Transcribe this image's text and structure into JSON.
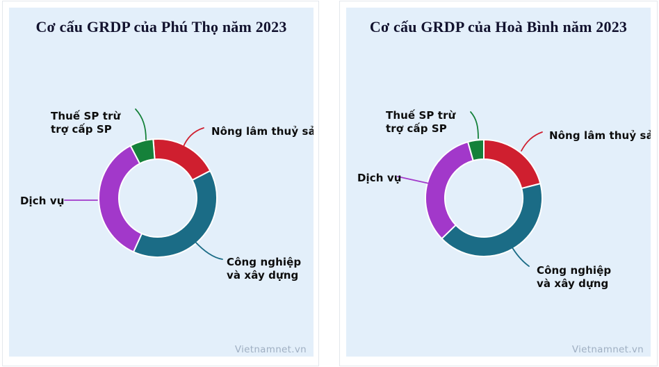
{
  "watermark": "Vietnamnet.vn",
  "colors": {
    "panel_bg": "#e3effa",
    "card_border": "#e3e7ec",
    "title_text": "#12122e",
    "label_text": "#0d0d0d",
    "watermark_text": "#9fafc2",
    "red": "#cf1f2f",
    "teal": "#1b6c86",
    "purple": "#a238ca",
    "green": "#15813a"
  },
  "chart_data": [
    {
      "type": "pie",
      "subtype": "donut",
      "title": "Cơ cấu GRDP của Phú Thọ năm 2023",
      "units": "percent (estimated from arc angles, no numeric labels shown)",
      "start_angle_deg": -4.5,
      "legend_position": "callout-labels",
      "segments": [
        {
          "label": "Nông lâm thuỷ sản",
          "value": 18.6,
          "color": "#cf1f2f"
        },
        {
          "label": "Công nghiệp và xây dựng",
          "value": 39.4,
          "color": "#1b6c86"
        },
        {
          "label": "Dịch vụ",
          "value": 35.6,
          "color": "#a238ca"
        },
        {
          "label": "Thuế SP trừ trợ cấp SP",
          "value": 6.4,
          "color": "#15813a"
        }
      ],
      "source": "Vietnamnet.vn"
    },
    {
      "type": "pie",
      "subtype": "donut",
      "title": "Cơ cấu GRDP của Hoà Bình năm 2023",
      "units": "percent (estimated from arc angles, no numeric labels shown)",
      "start_angle_deg": 0,
      "legend_position": "callout-labels",
      "segments": [
        {
          "label": "Nông lâm thuỷ sản",
          "value": 21.0,
          "color": "#cf1f2f"
        },
        {
          "label": "Công nghiệp và xây dựng",
          "value": 41.8,
          "color": "#1b6c86"
        },
        {
          "label": "Dịch vụ",
          "value": 32.8,
          "color": "#a238ca"
        },
        {
          "label": "Thuế SP trừ trợ cấp SP",
          "value": 4.4,
          "color": "#15813a"
        }
      ],
      "source": "Vietnamnet.vn"
    }
  ]
}
